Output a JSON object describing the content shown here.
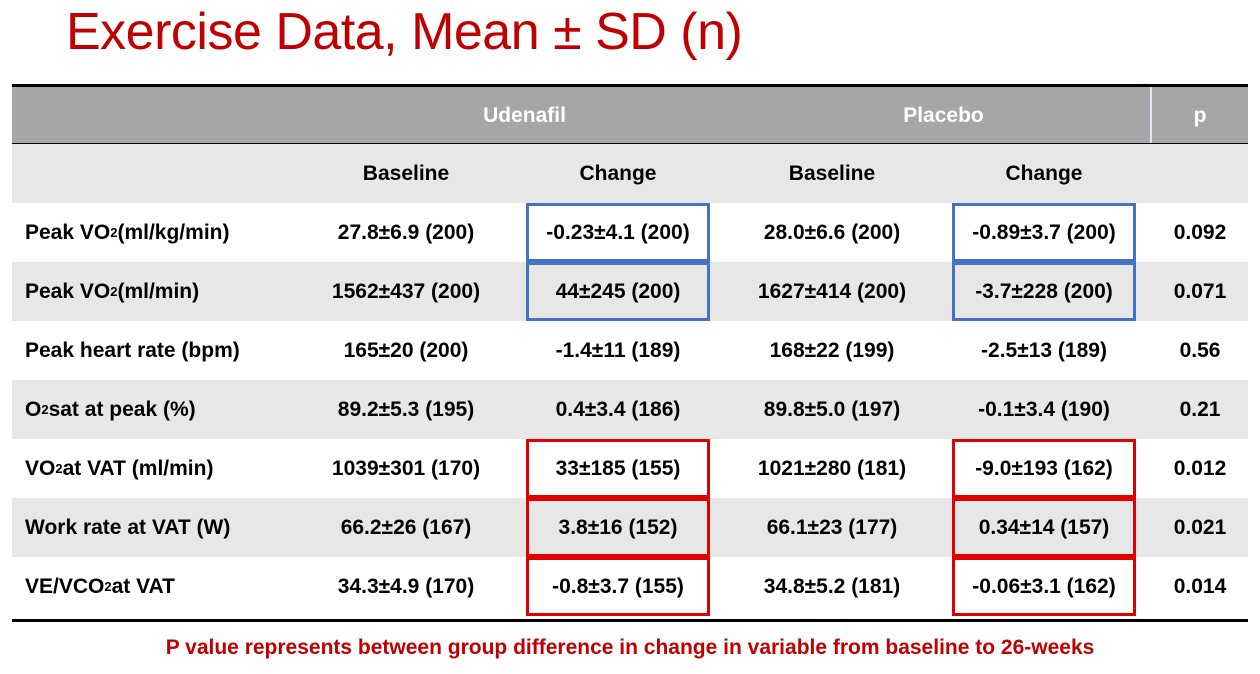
{
  "title": "Exercise Data, Mean ± SD (n)",
  "table": {
    "group_headers": [
      "",
      "Udenafil",
      "Placebo",
      "p"
    ],
    "sub_headers": [
      "",
      "Baseline",
      "Change",
      "Baseline",
      "Change",
      ""
    ],
    "rows": [
      {
        "pre": "Peak VO",
        "sub": "2",
        "post": " (ml/kg/min)",
        "values": [
          "27.8±6.9 (200)",
          "-0.23±4.1 (200)",
          "28.0±6.6 (200)",
          "-0.89±3.7 (200)",
          "0.092"
        ],
        "shaded": false,
        "highlight": "blue"
      },
      {
        "pre": "Peak VO",
        "sub": "2",
        "post": " (ml/min)",
        "values": [
          "1562±437 (200)",
          "44±245 (200)",
          "1627±414 (200)",
          "-3.7±228 (200)",
          "0.071"
        ],
        "shaded": true,
        "highlight": "blue"
      },
      {
        "pre": "Peak heart rate (bpm)",
        "sub": "",
        "post": "",
        "values": [
          "165±20 (200)",
          "-1.4±11 (189)",
          "168±22 (199)",
          "-2.5±13 (189)",
          "0.56"
        ],
        "shaded": false,
        "highlight": ""
      },
      {
        "pre": "O",
        "sub": "2",
        "post": " sat at peak (%)",
        "values": [
          "89.2±5.3 (195)",
          "0.4±3.4 (186)",
          "89.8±5.0 (197)",
          "-0.1±3.4 (190)",
          "0.21"
        ],
        "shaded": true,
        "highlight": ""
      },
      {
        "pre": "VO",
        "sub": "2",
        "post": " at VAT (ml/min)",
        "values": [
          "1039±301 (170)",
          "33±185 (155)",
          "1021±280 (181)",
          "-9.0±193 (162)",
          "0.012"
        ],
        "shaded": false,
        "highlight": "red"
      },
      {
        "pre": "Work rate at VAT (W)",
        "sub": "",
        "post": "",
        "values": [
          "66.2±26 (167)",
          "3.8±16 (152)",
          "66.1±23 (177)",
          "0.34±14 (157)",
          "0.021"
        ],
        "shaded": true,
        "highlight": "red"
      },
      {
        "pre": "VE/VCO",
        "sub": "2",
        "post": " at VAT",
        "values": [
          "34.3±4.9 (170)",
          "-0.8±3.7 (155)",
          "34.8±5.2 (181)",
          "-0.06±3.1 (162)",
          "0.014"
        ],
        "shaded": false,
        "highlight": "red"
      }
    ]
  },
  "footnote": "P value represents between group difference in change in variable from baseline to 26-weeks",
  "colors": {
    "title": "#c00000",
    "header_bg": "#a6a6a6",
    "stripe_bg": "#e7e7e7",
    "blue_box": "#4472c4",
    "red_box": "#e00000"
  }
}
